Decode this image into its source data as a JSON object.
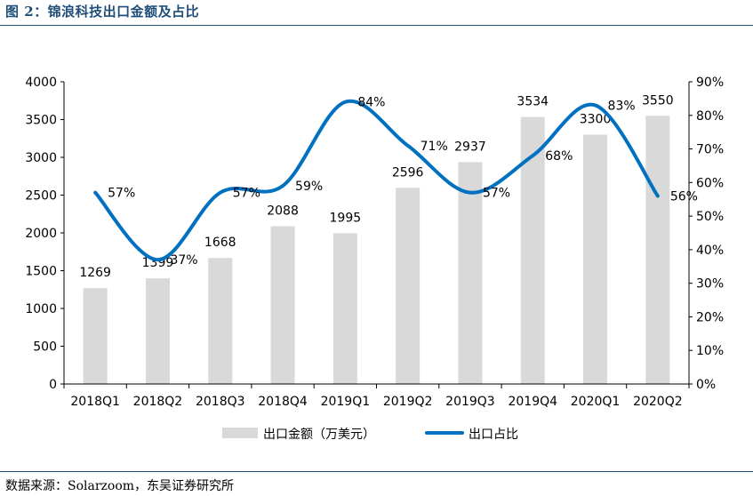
{
  "figure": {
    "title": "图 2：锦浪科技出口金额及占比",
    "source": "数据来源：Solarzoom，东吴证券研究所"
  },
  "chart_data": {
    "type": "bar",
    "categories": [
      "2018Q1",
      "2018Q2",
      "2018Q3",
      "2018Q4",
      "2019Q1",
      "2019Q2",
      "2019Q3",
      "2019Q4",
      "2020Q1",
      "2020Q2"
    ],
    "series": [
      {
        "name": "出口金额（万美元）",
        "type": "bar",
        "axis": "left",
        "values": [
          1269,
          1399,
          1668,
          2088,
          1995,
          2596,
          2937,
          3534,
          3300,
          3550
        ],
        "labels": [
          "1269",
          "1399",
          "1668",
          "2088",
          "1995",
          "2596",
          "2937",
          "3534",
          "3300",
          "3550"
        ],
        "color": "#d9d9d9"
      },
      {
        "name": "出口占比",
        "type": "line",
        "smooth": true,
        "axis": "right",
        "values": [
          57,
          37,
          57,
          59,
          84,
          71,
          57,
          68,
          83,
          56
        ],
        "labels": [
          "57%",
          "37%",
          "57%",
          "59%",
          "84%",
          "71%",
          "57%",
          "68%",
          "83%",
          "56%"
        ],
        "color": "#0070c0"
      }
    ],
    "y_left": {
      "min": 0,
      "max": 4000,
      "step": 500,
      "ticks": [
        "0",
        "500",
        "1000",
        "1500",
        "2000",
        "2500",
        "3000",
        "3500",
        "4000"
      ]
    },
    "y_right": {
      "min": 0,
      "max": 90,
      "step": 10,
      "ticks": [
        "0%",
        "10%",
        "20%",
        "30%",
        "40%",
        "50%",
        "60%",
        "70%",
        "80%",
        "90%"
      ]
    },
    "grid": false,
    "legend": "bottom"
  }
}
